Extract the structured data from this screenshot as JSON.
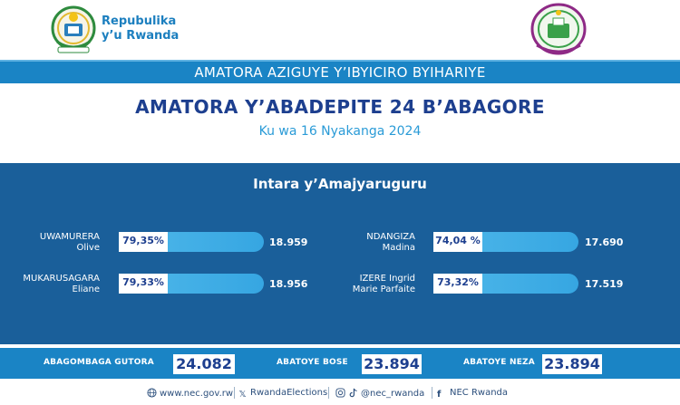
{
  "header": {
    "gov_name_line1": "Repubulika",
    "gov_name_line2": "y’u Rwanda"
  },
  "banner": {
    "text": "AMATORA AZIGUYE Y’IBYICIRO BYIHARIYE"
  },
  "title": "AMATORA Y’ABADEPITE 24 B’ABAGORE",
  "subtitle": "Ku wa 16 Nyakanga 2024",
  "region": "Intara y’Amajyaruguru",
  "candidates": [
    {
      "line1": "UWAMURERA",
      "line2": "Olive",
      "percent": "79,35%",
      "votes": "18.959"
    },
    {
      "line1": "MUKARUSAGARA",
      "line2": "Eliane",
      "percent": "79,33%",
      "votes": "18.956"
    },
    {
      "line1": "NDANGIZA",
      "line2": "Madina",
      "percent": "74,04 %",
      "votes": "17.690"
    },
    {
      "line1": "IZERE Ingrid",
      "line2": "Marie Parfaite",
      "percent": "73,32%",
      "votes": "17.519"
    }
  ],
  "summary": {
    "registered_label": "ABAGOMBAGA GUTORA",
    "registered_value": "24.082",
    "voted_label": "ABATOYE BOSE",
    "voted_value": "23.894",
    "valid_label": "ABATOYE NEZA",
    "valid_value": "23.894"
  },
  "footer": {
    "website": "www.nec.gov.rw",
    "x_handle": "RwandaElections",
    "ig_tiktok_handle": "@nec_rwanda",
    "facebook": "NEC Rwanda"
  },
  "colors": {
    "primary_blue": "#1a84c5",
    "panel_blue": "#1a5f9a",
    "title_navy": "#1d3f8f",
    "accent_light": "#4fb8ea"
  },
  "icons": [
    "rwanda-coat-of-arms",
    "nec-logo",
    "globe-icon",
    "x-icon",
    "instagram-icon",
    "tiktok-icon",
    "facebook-icon"
  ]
}
